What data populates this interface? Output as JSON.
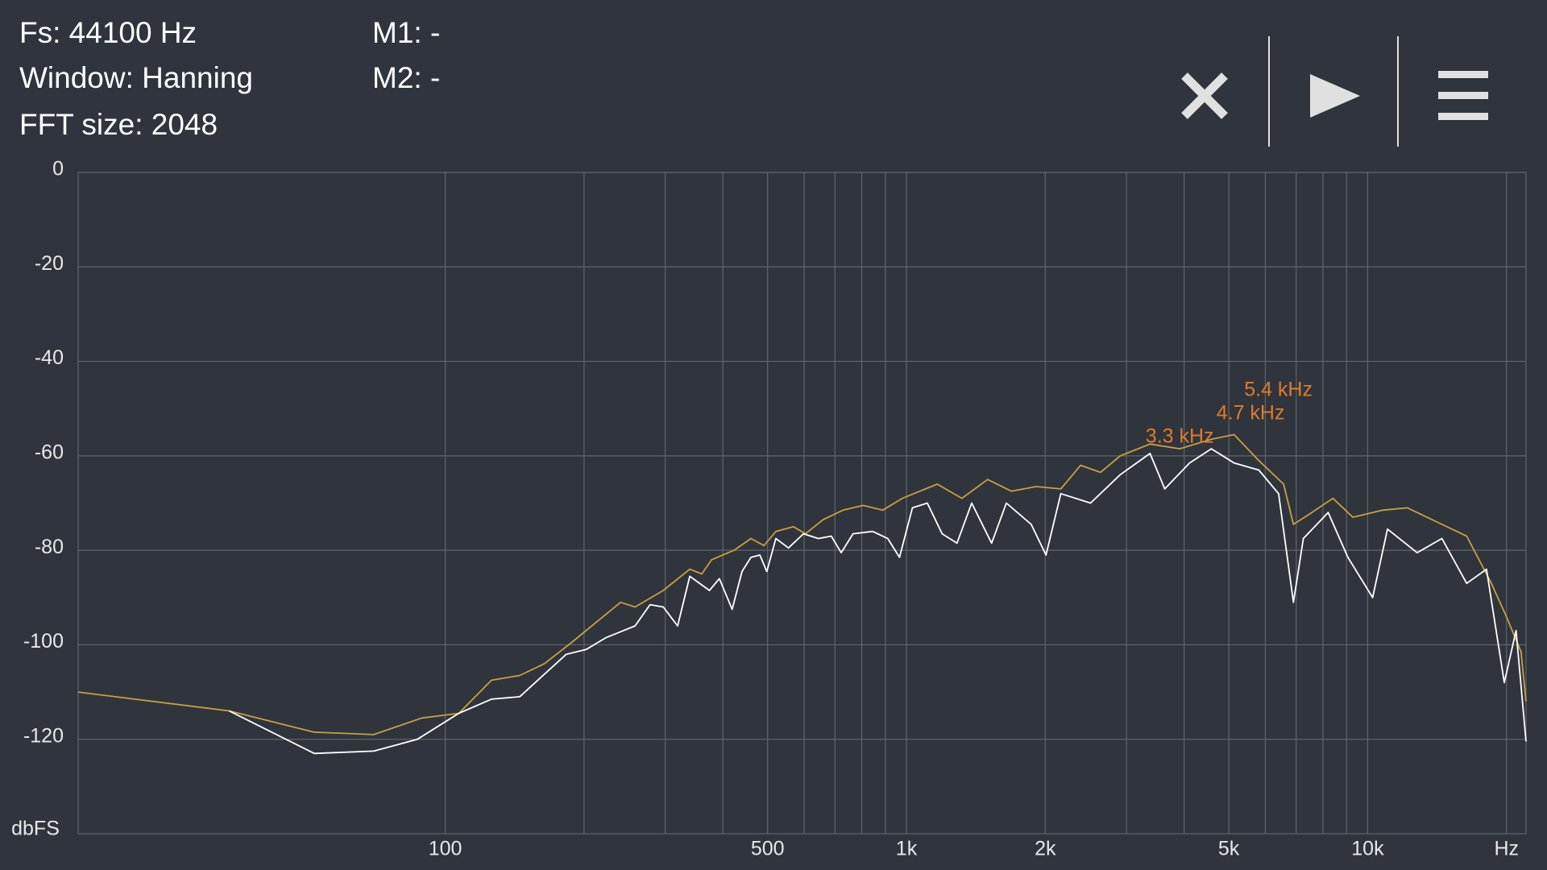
{
  "header": {
    "fs": "Fs: 44100 Hz",
    "window": "Window: Hanning",
    "fft_size": "FFT size: 2048",
    "m1": "M1: -",
    "m2": "M2: -"
  },
  "chart_data": {
    "type": "line",
    "xscale": "log",
    "grid": true,
    "y_label": "dbFS",
    "xlim": [
      16,
      22050
    ],
    "ylim": [
      -140,
      0
    ],
    "xticks": [
      100,
      500,
      {
        "value": 1000,
        "label": "1k"
      },
      {
        "value": 2000,
        "label": "2k"
      },
      {
        "value": 5000,
        "label": "5k"
      },
      {
        "value": 10000,
        "label": "10k"
      },
      {
        "value": 20000,
        "label": "Hz"
      }
    ],
    "xminor": [
      200,
      300,
      400,
      600,
      700,
      800,
      900,
      3000,
      4000,
      6000,
      7000,
      8000,
      9000
    ],
    "yticks": [
      0,
      -20,
      -40,
      -60,
      -80,
      -100,
      -120
    ],
    "annotations": [
      {
        "text": "3.3  kHz",
        "x": 3300
      },
      {
        "text": "4.7  kHz",
        "x": 4700
      },
      {
        "text": "5.4  kHz",
        "x": 5400
      }
    ],
    "annotation_color": "#e07a2a",
    "series": [
      {
        "color": "#c9a040",
        "x": [
          16,
          34,
          52,
          70,
          89,
          107,
          126,
          145,
          164,
          188,
          240,
          258,
          297,
          339,
          360,
          378,
          423,
          460,
          491,
          521,
          569,
          604,
          660,
          729,
          805,
          888,
          980,
          1166,
          1319,
          1500,
          1689,
          1910,
          2161,
          2386,
          2634,
          2907,
          3373,
          3911,
          4582,
          5132,
          5806,
          6572,
          6904,
          7432,
          8412,
          9286,
          10770,
          12190,
          14130,
          16390,
          18550,
          19980,
          21510,
          22050
        ],
        "values": [
          -110,
          -114,
          -118.5,
          -119,
          -115.5,
          -114.5,
          -107.5,
          -106.5,
          -104,
          -99.5,
          -91,
          -92,
          -88.5,
          -84,
          -85,
          -82,
          -80,
          -77.5,
          -79,
          -76,
          -75,
          -76.5,
          -73.5,
          -71.5,
          -70.5,
          -71.5,
          -69,
          -66,
          -69,
          -65,
          -67.5,
          -66.5,
          -67,
          -62,
          -63.5,
          -60,
          -57.5,
          -58.5,
          -56.5,
          -55.5,
          -61,
          -66,
          -74.5,
          -72.5,
          -69,
          -73,
          -71.5,
          -71,
          -74,
          -77,
          -87,
          -94,
          -101.5,
          -112
        ]
      },
      {
        "color": "#ffffff",
        "x": [
          34,
          52,
          70,
          87,
          107,
          126,
          145,
          183,
          202,
          223,
          258,
          278,
          297,
          319,
          339,
          374,
          393,
          419,
          440,
          460,
          481,
          498,
          521,
          555,
          598,
          644,
          687,
          722,
          766,
          845,
          911,
          966,
          1030,
          1110,
          1195,
          1287,
          1385,
          1530,
          1647,
          1864,
          2007,
          2161,
          2507,
          2907,
          3373,
          3632,
          4110,
          4582,
          5132,
          5806,
          6411,
          6904,
          7254,
          8209,
          9060,
          10250,
          11040,
          12800,
          14490,
          16390,
          18100,
          19780,
          20980,
          22050
        ],
        "values": [
          -114,
          -123,
          -122.5,
          -120,
          -114.5,
          -111.5,
          -111,
          -102,
          -101,
          -98.5,
          -96,
          -91.5,
          -92,
          -96,
          -85.5,
          -88.5,
          -86,
          -92.5,
          -84.5,
          -81.5,
          -81,
          -84.5,
          -77.5,
          -79.5,
          -76.5,
          -77.5,
          -77,
          -80.5,
          -76.5,
          -76,
          -77.5,
          -81.5,
          -71,
          -70,
          -76.5,
          -78.5,
          -70,
          -78.5,
          -70,
          -74.5,
          -81,
          -68,
          -70,
          -64,
          -59.5,
          -67,
          -61.5,
          -58.5,
          -61.5,
          -63,
          -68,
          -91,
          -77.5,
          -72,
          -81.5,
          -90,
          -75.5,
          -80.5,
          -77.5,
          -87,
          -84,
          -108,
          -97,
          -120.5
        ]
      }
    ]
  }
}
